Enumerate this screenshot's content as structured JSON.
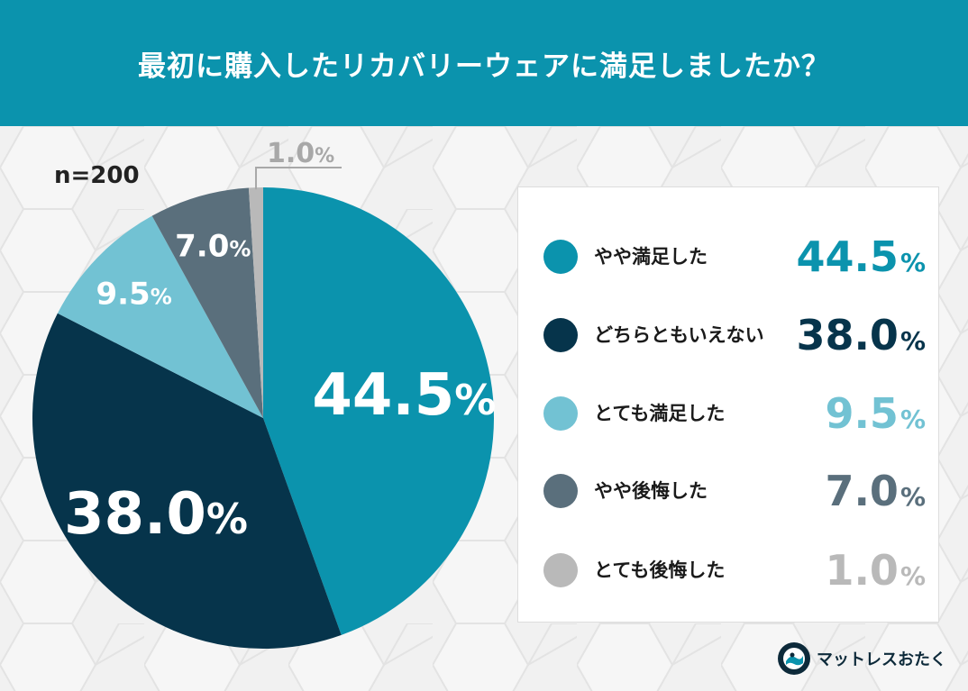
{
  "header": {
    "title": "最初に購入したリカバリーウェアに満足しましたか？"
  },
  "sample_size": "n=200",
  "chart_data": {
    "type": "pie",
    "title": "最初に購入したリカバリーウェアに満足しましたか？",
    "slices": [
      {
        "label": "やや満足した",
        "value": 44.5,
        "display": "44.5",
        "color": "#0b93ad"
      },
      {
        "label": "どちらともいえない",
        "value": 38.0,
        "display": "38.0",
        "color": "#06344b"
      },
      {
        "label": "とても満足した",
        "value": 9.5,
        "display": "9.5",
        "color": "#72c2d3"
      },
      {
        "label": "やや後悔した",
        "value": 7.0,
        "display": "7.0",
        "color": "#5a6f7c"
      },
      {
        "label": "とても後悔した",
        "value": 1.0,
        "display": "1.0",
        "color": "#b9b9b9"
      }
    ],
    "unit": "%",
    "legend_position": "right"
  },
  "brand": {
    "name": "マットレスおたく",
    "logo_icon": "mattress-otaku-logo-icon"
  }
}
